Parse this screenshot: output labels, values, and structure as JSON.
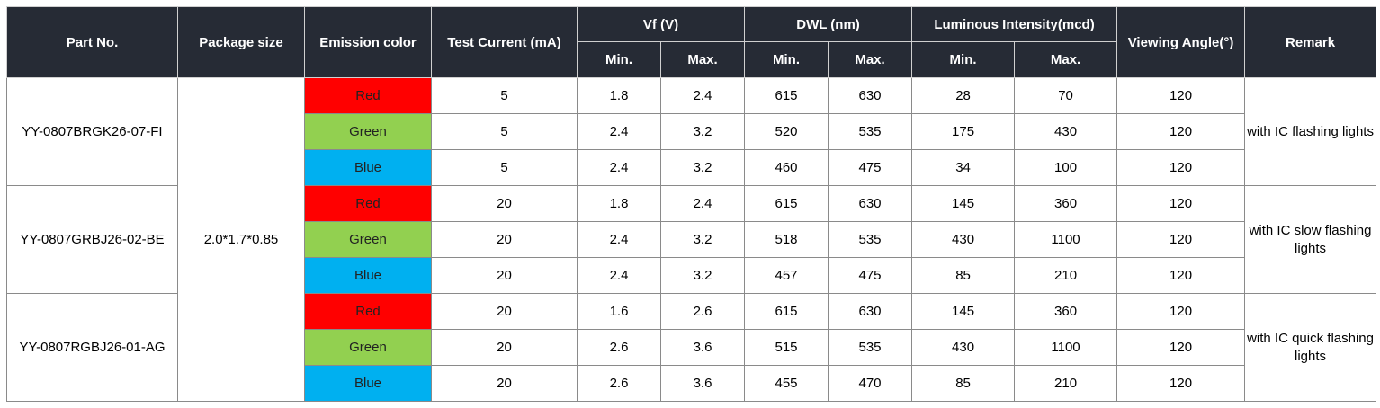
{
  "headers": {
    "part_no": "Part No.",
    "package_size": "Package size",
    "emission_color": "Emission color",
    "test_current": "Test Current (mA)",
    "vf": "Vf (V)",
    "dwl": "DWL (nm)",
    "luminous": "Luminous Intensity(mcd)",
    "viewing_angle": "Viewing Angle(°)",
    "remark": "Remark",
    "min": "Min.",
    "max": "Max."
  },
  "colors": {
    "red": "#ff0000",
    "green": "#92d050",
    "blue": "#00b0f0",
    "header_bg": "#262b35"
  },
  "package_size": "2.0*1.7*0.85",
  "groups": [
    {
      "part_no": "YY-0807BRGK26-07-FI",
      "remark": "with IC flashing lights",
      "rows": [
        {
          "color": "Red",
          "current": "5",
          "vf_min": "1.8",
          "vf_max": "2.4",
          "dwl_min": "615",
          "dwl_max": "630",
          "lum_min": "28",
          "lum_max": "70",
          "angle": "120"
        },
        {
          "color": "Green",
          "current": "5",
          "vf_min": "2.4",
          "vf_max": "3.2",
          "dwl_min": "520",
          "dwl_max": "535",
          "lum_min": "175",
          "lum_max": "430",
          "angle": "120"
        },
        {
          "color": "Blue",
          "current": "5",
          "vf_min": "2.4",
          "vf_max": "3.2",
          "dwl_min": "460",
          "dwl_max": "475",
          "lum_min": "34",
          "lum_max": "100",
          "angle": "120"
        }
      ]
    },
    {
      "part_no": "YY-0807GRBJ26-02-BE",
      "remark": "with IC slow flashing lights",
      "rows": [
        {
          "color": "Red",
          "current": "20",
          "vf_min": "1.8",
          "vf_max": "2.4",
          "dwl_min": "615",
          "dwl_max": "630",
          "lum_min": "145",
          "lum_max": "360",
          "angle": "120"
        },
        {
          "color": "Green",
          "current": "20",
          "vf_min": "2.4",
          "vf_max": "3.2",
          "dwl_min": "518",
          "dwl_max": "535",
          "lum_min": "430",
          "lum_max": "1100",
          "angle": "120"
        },
        {
          "color": "Blue",
          "current": "20",
          "vf_min": "2.4",
          "vf_max": "3.2",
          "dwl_min": "457",
          "dwl_max": "475",
          "lum_min": "85",
          "lum_max": "210",
          "angle": "120"
        }
      ]
    },
    {
      "part_no": "YY-0807RGBJ26-01-AG",
      "remark": "with IC quick flashing lights",
      "rows": [
        {
          "color": "Red",
          "current": "20",
          "vf_min": "1.6",
          "vf_max": "2.6",
          "dwl_min": "615",
          "dwl_max": "630",
          "lum_min": "145",
          "lum_max": "360",
          "angle": "120"
        },
        {
          "color": "Green",
          "current": "20",
          "vf_min": "2.6",
          "vf_max": "3.6",
          "dwl_min": "515",
          "dwl_max": "535",
          "lum_min": "430",
          "lum_max": "1100",
          "angle": "120"
        },
        {
          "color": "Blue",
          "current": "20",
          "vf_min": "2.6",
          "vf_max": "3.6",
          "dwl_min": "455",
          "dwl_max": "470",
          "lum_min": "85",
          "lum_max": "210",
          "angle": "120"
        }
      ]
    }
  ]
}
